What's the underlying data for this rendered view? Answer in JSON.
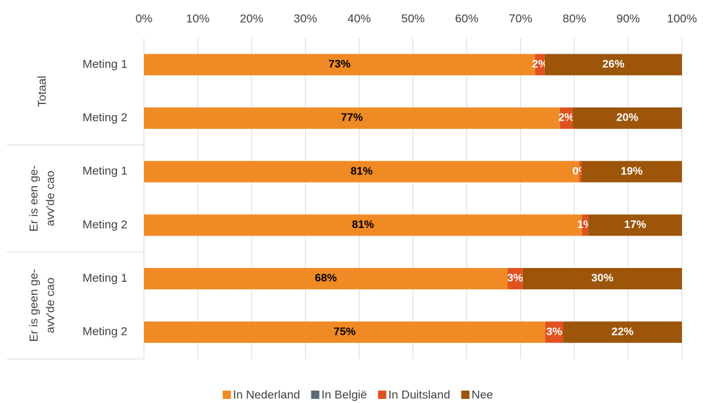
{
  "chart_data": {
    "type": "stacked_barh",
    "categories": [
      "Meting 1",
      "Meting 2",
      "Meting 1",
      "Meting 2",
      "Meting 1",
      "Meting 2"
    ],
    "groups": [
      {
        "label": [
          "Totaal"
        ],
        "categories": [
          "Meting 1",
          "Meting 2"
        ]
      },
      {
        "label": [
          "Er is een ge-",
          "avv'de cao"
        ],
        "categories": [
          "Meting 1",
          "Meting 2"
        ]
      },
      {
        "label": [
          "Er is geen ge-",
          "avv'de cao"
        ],
        "categories": [
          "Meting 1",
          "Meting 2"
        ]
      }
    ],
    "series": [
      {
        "name": "In Nederland",
        "color": "#f08a24",
        "label_color": "#000000",
        "values": [
          72.7,
          77.3,
          80.9,
          81.4,
          67.6,
          74.6
        ],
        "value_labels": [
          "73%",
          "77%",
          "81%",
          "81%",
          "68%",
          "75%"
        ]
      },
      {
        "name": "In België",
        "color": "#5b6b7a",
        "values": [
          0,
          0,
          0,
          0,
          0,
          0
        ]
      },
      {
        "name": "In Duitsland",
        "color": "#e0521f",
        "label_color": "#ffffff",
        "values": [
          1.8,
          2.4,
          0.4,
          1.2,
          2.8,
          3.3
        ],
        "value_labels": [
          "2%",
          "2%",
          "0%",
          "1%",
          "3%",
          "3%"
        ]
      },
      {
        "name": "Nee",
        "color": "#9c5509",
        "label_color": "#ffffff",
        "values": [
          25.5,
          20.3,
          18.7,
          17.4,
          29.6,
          22.1
        ],
        "value_labels": [
          "26%",
          "20%",
          "19%",
          "17%",
          "30%",
          "22%"
        ]
      }
    ],
    "xlim": [
      0,
      100
    ],
    "xticks": [
      {
        "value": 0,
        "label": "0%"
      },
      {
        "value": 10,
        "label": "10%"
      },
      {
        "value": 20,
        "label": "20%"
      },
      {
        "value": 30,
        "label": "30%"
      },
      {
        "value": 40,
        "label": "40%"
      },
      {
        "value": 50,
        "label": "50%"
      },
      {
        "value": 60,
        "label": "60%"
      },
      {
        "value": 70,
        "label": "70%"
      },
      {
        "value": 80,
        "label": "80%"
      },
      {
        "value": 90,
        "label": "90%"
      },
      {
        "value": 100,
        "label": "100%"
      }
    ],
    "grid": true,
    "legend": "bottom"
  }
}
